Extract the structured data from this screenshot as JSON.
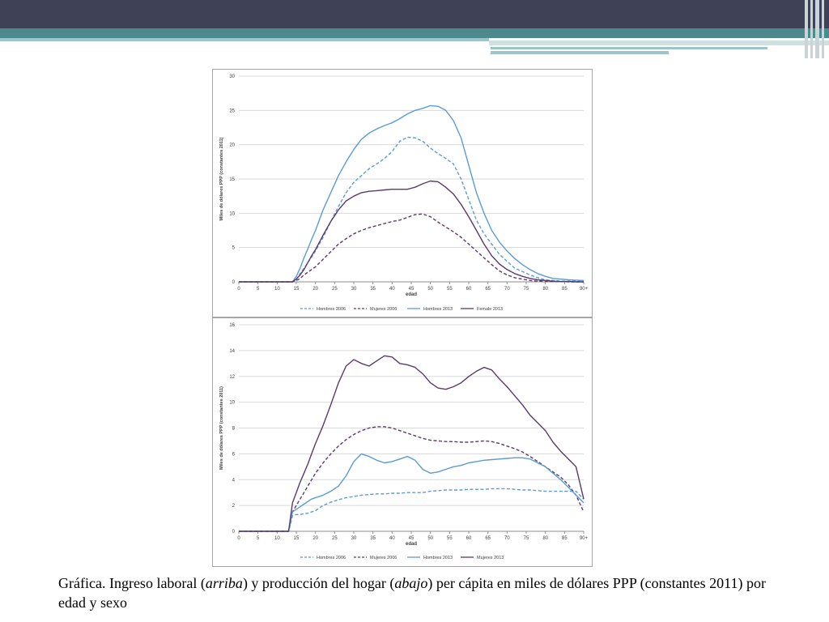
{
  "slide": {
    "caption": {
      "part1": "Gráfica. Ingreso laboral (",
      "em1": "arriba",
      "part2": ") y producción del hogar (",
      "em2": "abajo",
      "part3": ") per cápita en miles de dólares PPP (constantes 2011) por edad y sexo"
    },
    "colors": {
      "header_dark": "#3f4257",
      "header_teal": "#4d8a8e",
      "hombres": "#5b9bd5",
      "mujeres": "#5a3a6e"
    }
  },
  "chart_data": [
    {
      "type": "line",
      "title": "",
      "xlabel": "edad",
      "ylabel": "Miles de dólares PPP (constantes 2011)",
      "xlim": [
        0,
        90
      ],
      "ylim": [
        0,
        30
      ],
      "x_ticks": [
        "0",
        "5",
        "10",
        "15",
        "20",
        "25",
        "30",
        "35",
        "40",
        "45",
        "50",
        "55",
        "60",
        "65",
        "70",
        "75",
        "80",
        "85",
        "90+"
      ],
      "y_ticks": [
        "0",
        "5",
        "10",
        "15",
        "20",
        "25",
        "30"
      ],
      "grid": true,
      "legend": "bottom",
      "x": [
        0,
        5,
        10,
        13,
        14,
        15,
        16,
        17,
        18,
        19,
        20,
        22,
        24,
        26,
        28,
        30,
        32,
        34,
        36,
        38,
        40,
        42,
        44,
        46,
        48,
        50,
        52,
        54,
        56,
        58,
        60,
        62,
        64,
        66,
        68,
        70,
        72,
        74,
        76,
        78,
        80,
        82,
        84,
        86,
        88,
        90
      ],
      "series": [
        {
          "name": "Hombres 2006",
          "style": "dashed",
          "color": "#5b9bd5",
          "values": [
            0,
            0,
            0,
            0,
            0,
            0.4,
            1.2,
            2,
            2.8,
            3.6,
            4.5,
            6.5,
            8.8,
            11,
            13,
            14.5,
            15.5,
            16.5,
            17.2,
            18,
            19,
            20.5,
            21.1,
            21,
            20.5,
            19.5,
            18.7,
            18,
            17.2,
            15,
            12,
            9,
            7,
            5.5,
            4,
            3,
            2,
            1.5,
            1,
            0.6,
            0.3,
            0.2,
            0.1,
            0.1,
            0.1,
            0.1
          ]
        },
        {
          "name": "Mujeres 2006",
          "style": "dashed",
          "color": "#5a3a6e",
          "values": [
            0,
            0,
            0,
            0,
            0,
            0.2,
            0.5,
            1,
            1.4,
            1.8,
            2.2,
            3.3,
            4.4,
            5.5,
            6.3,
            7,
            7.5,
            7.9,
            8.2,
            8.5,
            8.8,
            9,
            9.4,
            9.8,
            9.9,
            9.5,
            8.7,
            8,
            7.3,
            6.5,
            5.5,
            4.5,
            3.5,
            2.5,
            1.6,
            1,
            0.6,
            0.4,
            0.2,
            0.1,
            0.1,
            0.05,
            0.05,
            0,
            0,
            0
          ]
        },
        {
          "name": "Hombres 2013",
          "style": "solid",
          "color": "#5b9bd5",
          "values": [
            0,
            0,
            0,
            0,
            0,
            0.8,
            2,
            3.5,
            4.8,
            6.2,
            7.5,
            10.5,
            13,
            15.5,
            17.5,
            19.3,
            20.8,
            21.7,
            22.3,
            22.8,
            23.2,
            23.8,
            24.5,
            25,
            25.3,
            25.7,
            25.6,
            25,
            23.5,
            21,
            17,
            13,
            10,
            7.5,
            5.8,
            4.5,
            3.4,
            2.5,
            1.8,
            1.2,
            0.8,
            0.5,
            0.4,
            0.3,
            0.25,
            0.2
          ]
        },
        {
          "name": "Female 2013",
          "style": "solid",
          "color": "#5a3a6e",
          "values": [
            0,
            0,
            0,
            0,
            0,
            0.4,
            1,
            1.8,
            2.8,
            3.8,
            4.7,
            6.8,
            8.8,
            10.5,
            11.8,
            12.5,
            13,
            13.2,
            13.3,
            13.4,
            13.5,
            13.5,
            13.5,
            13.8,
            14.3,
            14.7,
            14.6,
            13.8,
            12.8,
            11.3,
            9.5,
            7.5,
            5.5,
            3.8,
            2.6,
            1.8,
            1.2,
            0.8,
            0.5,
            0.3,
            0.2,
            0.1,
            0.05,
            0.05,
            0,
            0
          ]
        }
      ]
    },
    {
      "type": "line",
      "title": "",
      "xlabel": "edad",
      "ylabel": "Miles de dólares PPP (constantes 2011)",
      "xlim": [
        0,
        90
      ],
      "ylim": [
        0,
        16
      ],
      "x_ticks": [
        "0",
        "5",
        "10",
        "15",
        "20",
        "25",
        "30",
        "35",
        "40",
        "45",
        "50",
        "55",
        "60",
        "65",
        "70",
        "75",
        "80",
        "85",
        "90+"
      ],
      "y_ticks": [
        "0",
        "2",
        "4",
        "6",
        "8",
        "10",
        "12",
        "14",
        "16"
      ],
      "grid": true,
      "legend": "bottom",
      "x": [
        0,
        5,
        10,
        13,
        14,
        15,
        16,
        17,
        18,
        19,
        20,
        22,
        24,
        26,
        28,
        30,
        32,
        34,
        36,
        38,
        40,
        42,
        44,
        46,
        48,
        50,
        52,
        54,
        56,
        58,
        60,
        62,
        64,
        66,
        68,
        70,
        72,
        74,
        76,
        78,
        80,
        82,
        84,
        86,
        88,
        90
      ],
      "series": [
        {
          "name": "Hombres 2006",
          "style": "dashed",
          "color": "#5b9bd5",
          "values": [
            0,
            0,
            0,
            0,
            1.2,
            1.3,
            1.3,
            1.35,
            1.4,
            1.5,
            1.6,
            2,
            2.25,
            2.45,
            2.6,
            2.7,
            2.8,
            2.85,
            2.9,
            2.9,
            2.95,
            2.95,
            3,
            3,
            3,
            3.1,
            3.15,
            3.2,
            3.2,
            3.2,
            3.25,
            3.25,
            3.25,
            3.3,
            3.3,
            3.3,
            3.25,
            3.2,
            3.2,
            3.15,
            3.1,
            3.1,
            3.1,
            3.1,
            3.1,
            2.5
          ]
        },
        {
          "name": "Mujeres 2006",
          "style": "dashed",
          "color": "#5a3a6e",
          "values": [
            0,
            0,
            0,
            0,
            1.5,
            2,
            2.5,
            3,
            3.5,
            4,
            4.5,
            5.3,
            6,
            6.6,
            7.1,
            7.5,
            7.8,
            8,
            8.1,
            8.1,
            8,
            7.8,
            7.6,
            7.4,
            7.2,
            7.05,
            7,
            6.95,
            6.95,
            6.9,
            6.9,
            6.95,
            7,
            6.95,
            6.8,
            6.6,
            6.4,
            6.15,
            5.8,
            5.4,
            5,
            4.6,
            4.2,
            3.6,
            2.8,
            1.5
          ]
        },
        {
          "name": "Hombres 2013",
          "style": "solid",
          "color": "#5b9bd5",
          "values": [
            0,
            0,
            0,
            0,
            1.5,
            1.7,
            1.9,
            2.1,
            2.3,
            2.5,
            2.6,
            2.8,
            3.1,
            3.5,
            4.3,
            5.4,
            6,
            5.8,
            5.5,
            5.3,
            5.4,
            5.6,
            5.8,
            5.5,
            4.8,
            4.5,
            4.6,
            4.8,
            5,
            5.1,
            5.3,
            5.4,
            5.5,
            5.55,
            5.6,
            5.65,
            5.7,
            5.7,
            5.6,
            5.3,
            5,
            4.5,
            4,
            3.4,
            2.8,
            2.2
          ]
        },
        {
          "name": "Mujeres 2013",
          "style": "solid",
          "color": "#5a3a6e",
          "values": [
            0,
            0,
            0,
            0,
            2.2,
            3,
            3.8,
            4.5,
            5.2,
            6,
            6.8,
            8.2,
            9.8,
            11.5,
            12.8,
            13.3,
            13,
            12.8,
            13.2,
            13.6,
            13.5,
            13,
            12.9,
            12.7,
            12.2,
            11.5,
            11.1,
            11,
            11.2,
            11.5,
            12,
            12.4,
            12.7,
            12.5,
            11.8,
            11.2,
            10.5,
            9.8,
            9,
            8.4,
            7.8,
            6.9,
            6.2,
            5.6,
            5,
            2.5
          ]
        }
      ]
    }
  ]
}
